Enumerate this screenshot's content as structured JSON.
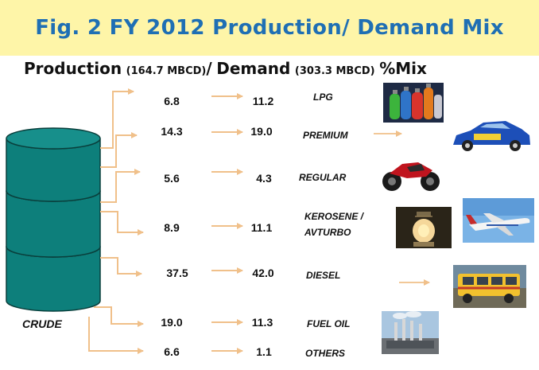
{
  "header": {
    "title": "Fig. 2  FY 2012 Production/ Demand Mix"
  },
  "subtitle": {
    "production_word": "Production",
    "production_value": "(164.7 MBCD)",
    "separator": "/",
    "demand_word": "Demand",
    "demand_value": "(303.3 MBCD)",
    "mix_label": "%Mix"
  },
  "source_label": "CRUDE",
  "rows": [
    {
      "production": "6.8",
      "demand": "11.2",
      "label": "LPG",
      "label2": ""
    },
    {
      "production": "14.3",
      "demand": "19.0",
      "label": "PREMIUM",
      "label2": ""
    },
    {
      "production": "5.6",
      "demand": "4.3",
      "label": "REGULAR",
      "label2": ""
    },
    {
      "production": "8.9",
      "demand": "11.1",
      "label": "KEROSENE /",
      "label2": "AVTURBO"
    },
    {
      "production": "37.5",
      "demand": "42.0",
      "label": "DIESEL",
      "label2": ""
    },
    {
      "production": "19.0",
      "demand": "11.3",
      "label": "FUEL OIL",
      "label2": ""
    },
    {
      "production": "6.6",
      "demand": "1.1",
      "label": "OTHERS",
      "label2": ""
    }
  ],
  "colors": {
    "banner_bg": "#fef5a8",
    "title_blue": "#1f6fb4",
    "barrel_teal": "#0d7f7b",
    "arrow_tan": "#f0c08a"
  },
  "icons": [
    "lpg-tanks-photo-icon",
    "rally-car-photo-icon",
    "motorcycle-photo-icon",
    "lantern-photo-icon",
    "airplane-photo-icon",
    "jeepney-photo-icon",
    "power-plant-photo-icon"
  ]
}
